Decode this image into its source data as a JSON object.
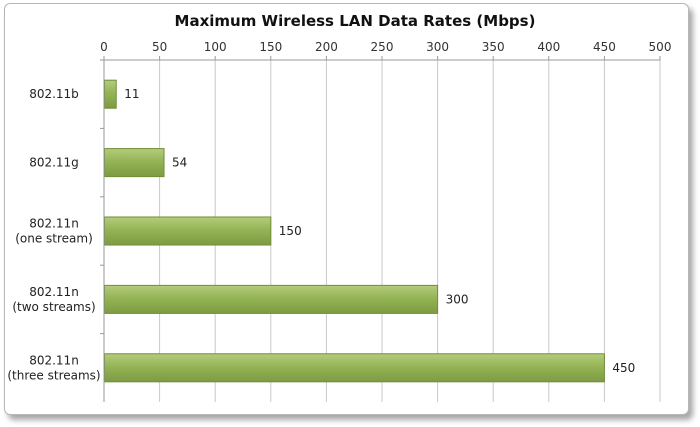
{
  "chart_data": {
    "type": "bar",
    "orientation": "horizontal",
    "title": "Maximum Wireless LAN Data Rates (Mbps)",
    "categories": [
      [
        "802.11b"
      ],
      [
        "802.11g"
      ],
      [
        "802.11n",
        "(one stream)"
      ],
      [
        "802.11n",
        "(two streams)"
      ],
      [
        "802.11n",
        "(three streams)"
      ]
    ],
    "values": [
      11,
      54,
      150,
      300,
      450
    ],
    "xlim": [
      0,
      500
    ],
    "xticks": [
      0,
      50,
      100,
      150,
      200,
      250,
      300,
      350,
      400,
      450,
      500
    ],
    "x_axis_position": "top",
    "grid": true,
    "bar_color": "#8dac50",
    "bar_border_color": "#6f8f38",
    "data_labels": true
  }
}
